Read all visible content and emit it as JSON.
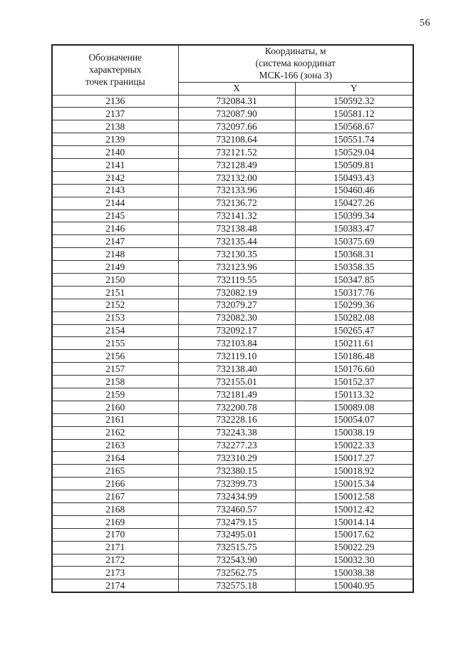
{
  "page": {
    "number": "56"
  },
  "table": {
    "header": {
      "designation_lines": [
        "Обозначение",
        "характерных",
        "точек границы"
      ],
      "coordinates_lines": [
        "Координаты, м",
        "(система координат",
        "МСК-166 (зона 3)"
      ],
      "x_label": "X",
      "y_label": "Y"
    },
    "rows": [
      {
        "id": "2136",
        "x": "732084.31",
        "y": "150592.32"
      },
      {
        "id": "2137",
        "x": "732087.90",
        "y": "150581.12"
      },
      {
        "id": "2138",
        "x": "732097.66",
        "y": "150568.67"
      },
      {
        "id": "2139",
        "x": "732108.64",
        "y": "150551.74"
      },
      {
        "id": "2140",
        "x": "732121.52",
        "y": "150529.04"
      },
      {
        "id": "2141",
        "x": "732128.49",
        "y": "150509.81"
      },
      {
        "id": "2142",
        "x": "732132.00",
        "y": "150493.43"
      },
      {
        "id": "2143",
        "x": "732133.96",
        "y": "150460.46"
      },
      {
        "id": "2144",
        "x": "732136.72",
        "y": "150427.26"
      },
      {
        "id": "2145",
        "x": "732141.32",
        "y": "150399.34"
      },
      {
        "id": "2146",
        "x": "732138.48",
        "y": "150383.47"
      },
      {
        "id": "2147",
        "x": "732135.44",
        "y": "150375.69"
      },
      {
        "id": "2148",
        "x": "732130.35",
        "y": "150368.31"
      },
      {
        "id": "2149",
        "x": "732123.96",
        "y": "150358.35"
      },
      {
        "id": "2150",
        "x": "732119.55",
        "y": "150347.85"
      },
      {
        "id": "2151",
        "x": "732082.19",
        "y": "150317.76"
      },
      {
        "id": "2152",
        "x": "732079.27",
        "y": "150299.36"
      },
      {
        "id": "2153",
        "x": "732082.30",
        "y": "150282.08"
      },
      {
        "id": "2154",
        "x": "732092.17",
        "y": "150265.47"
      },
      {
        "id": "2155",
        "x": "732103.84",
        "y": "150211.61"
      },
      {
        "id": "2156",
        "x": "732119.10",
        "y": "150186.48"
      },
      {
        "id": "2157",
        "x": "732138.40",
        "y": "150176.60"
      },
      {
        "id": "2158",
        "x": "732155.01",
        "y": "150152.37"
      },
      {
        "id": "2159",
        "x": "732181.49",
        "y": "150113.32"
      },
      {
        "id": "2160",
        "x": "732200.78",
        "y": "150089.08"
      },
      {
        "id": "2161",
        "x": "732228.16",
        "y": "150054.07"
      },
      {
        "id": "2162",
        "x": "732243.38",
        "y": "150038.19"
      },
      {
        "id": "2163",
        "x": "732277.23",
        "y": "150022.33"
      },
      {
        "id": "2164",
        "x": "732310.29",
        "y": "150017.27"
      },
      {
        "id": "2165",
        "x": "732380.15",
        "y": "150018.92"
      },
      {
        "id": "2166",
        "x": "732399.73",
        "y": "150015.34"
      },
      {
        "id": "2167",
        "x": "732434.99",
        "y": "150012.58"
      },
      {
        "id": "2168",
        "x": "732460.57",
        "y": "150012.42"
      },
      {
        "id": "2169",
        "x": "732479.15",
        "y": "150014.14"
      },
      {
        "id": "2170",
        "x": "732495.01",
        "y": "150017.62"
      },
      {
        "id": "2171",
        "x": "732515.75",
        "y": "150022.29"
      },
      {
        "id": "2172",
        "x": "732543.90",
        "y": "150032.30"
      },
      {
        "id": "2173",
        "x": "732562.75",
        "y": "150038.38"
      },
      {
        "id": "2174",
        "x": "732575.18",
        "y": "150040.95"
      }
    ]
  }
}
